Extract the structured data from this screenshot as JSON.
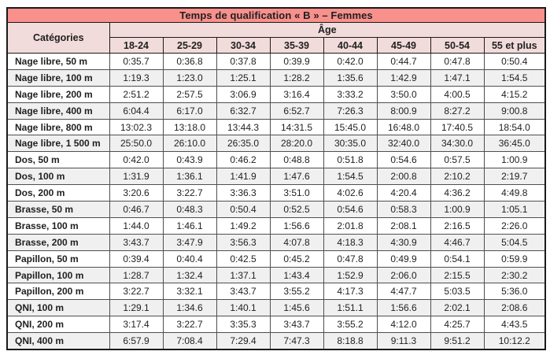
{
  "title": "Temps de qualification « B » – Femmes",
  "table": {
    "corner_header": "Catégories",
    "age_header": "Âge",
    "age_columns": [
      "18-24",
      "25-29",
      "30-34",
      "35-39",
      "40-44",
      "45-49",
      "50-54",
      "55 et plus"
    ],
    "rows": [
      {
        "label": "Nage libre, 50 m",
        "values": [
          "0:35.7",
          "0:36.8",
          "0:37.8",
          "0:39.9",
          "0:42.0",
          "0:44.7",
          "0:47.8",
          "0:50.4"
        ]
      },
      {
        "label": "Nage libre, 100 m",
        "values": [
          "1:19.3",
          "1:23.0",
          "1:25.1",
          "1:28.2",
          "1:35.6",
          "1:42.9",
          "1:47.1",
          "1:54.5"
        ]
      },
      {
        "label": "Nage libre, 200 m",
        "values": [
          "2:51.2",
          "2:57.5",
          "3:06.9",
          "3:16.4",
          "3:33.2",
          "3:50.0",
          "4:00.5",
          "4:15.2"
        ]
      },
      {
        "label": "Nage libre, 400 m",
        "values": [
          "6:04.4",
          "6:17.0",
          "6:32.7",
          "6:52.7",
          "7:26.3",
          "8:00.9",
          "8:27.2",
          "9:00.8"
        ]
      },
      {
        "label": "Nage libre, 800 m",
        "values": [
          "13:02.3",
          "13:18.0",
          "13:44.3",
          "14:31.5",
          "15:45.0",
          "16:48.0",
          "17:40.5",
          "18:54.0"
        ]
      },
      {
        "label": "Nage libre, 1 500 m",
        "values": [
          "25:50.0",
          "26:10.0",
          "26:35.0",
          "28:20.0",
          "30:35.0",
          "32:40.0",
          "34:30.0",
          "36:45.0"
        ]
      },
      {
        "label": "Dos, 50 m",
        "values": [
          "0:42.0",
          "0:43.9",
          "0:46.2",
          "0:48.8",
          "0:51.8",
          "0:54.6",
          "0:57.5",
          "1:00.9"
        ]
      },
      {
        "label": "Dos, 100 m",
        "values": [
          "1:31.9",
          "1:36.1",
          "1:41.9",
          "1:47.6",
          "1:54.5",
          "2:00.8",
          "2:10.2",
          "2:19.7"
        ]
      },
      {
        "label": "Dos, 200 m",
        "values": [
          "3:20.6",
          "3:22.7",
          "3:36.3",
          "3:51.0",
          "4:02.6",
          "4:20.4",
          "4:36.2",
          "4:49.8"
        ]
      },
      {
        "label": "Brasse, 50 m",
        "values": [
          "0:46.7",
          "0:48.3",
          "0:50.4",
          "0:52.5",
          "0:54.6",
          "0:58.3",
          "1:00.9",
          "1:05.1"
        ]
      },
      {
        "label": "Brasse, 100 m",
        "values": [
          "1:44.0",
          "1:46.1",
          "1:49.2",
          "1:56.6",
          "2:01.8",
          "2:08.1",
          "2:16.5",
          "2:26.0"
        ]
      },
      {
        "label": "Brasse, 200 m",
        "values": [
          "3:43.7",
          "3:47.9",
          "3:56.3",
          "4:07.8",
          "4:18.3",
          "4:30.9",
          "4:46.7",
          "5:04.5"
        ]
      },
      {
        "label": "Papillon, 50 m",
        "values": [
          "0:39.4",
          "0:40.4",
          "0:42.5",
          "0:45.2",
          "0:47.8",
          "0:49.9",
          "0:54.1",
          "0:59.9"
        ]
      },
      {
        "label": "Papillon, 100 m",
        "values": [
          "1:28.7",
          "1:32.4",
          "1:37.1",
          "1:43.4",
          "1:52.9",
          "2:06.0",
          "2:15.5",
          "2:30.2"
        ]
      },
      {
        "label": "Papillon, 200 m",
        "values": [
          "3:22.7",
          "3:32.1",
          "3:43.7",
          "3:55.2",
          "4:17.3",
          "4:47.7",
          "5:03.5",
          "5:36.0"
        ]
      },
      {
        "label": "QNI, 100 m",
        "values": [
          "1:29.1",
          "1:34.6",
          "1:40.1",
          "1:45.6",
          "1:51.1",
          "1:56.6",
          "2:02.1",
          "2:08.6"
        ]
      },
      {
        "label": "QNI, 200 m",
        "values": [
          "3:17.4",
          "3:22.7",
          "3:35.3",
          "3:43.7",
          "3:55.2",
          "4:12.0",
          "4:25.7",
          "4:43.5"
        ]
      },
      {
        "label": "QNI, 400 m",
        "values": [
          "6:57.9",
          "7:08.4",
          "7:29.4",
          "7:47.3",
          "8:18.8",
          "9:11.3",
          "9:51.2",
          "10:12.2"
        ]
      }
    ]
  },
  "colors": {
    "title_bg": "#f8908c",
    "header_bg": "#f2dcdb",
    "row_bg": "#ffffff",
    "row_alt_bg": "#f0f0f0",
    "border_dark": "#1a1a1a",
    "border_inner": "#4f4f4f"
  }
}
